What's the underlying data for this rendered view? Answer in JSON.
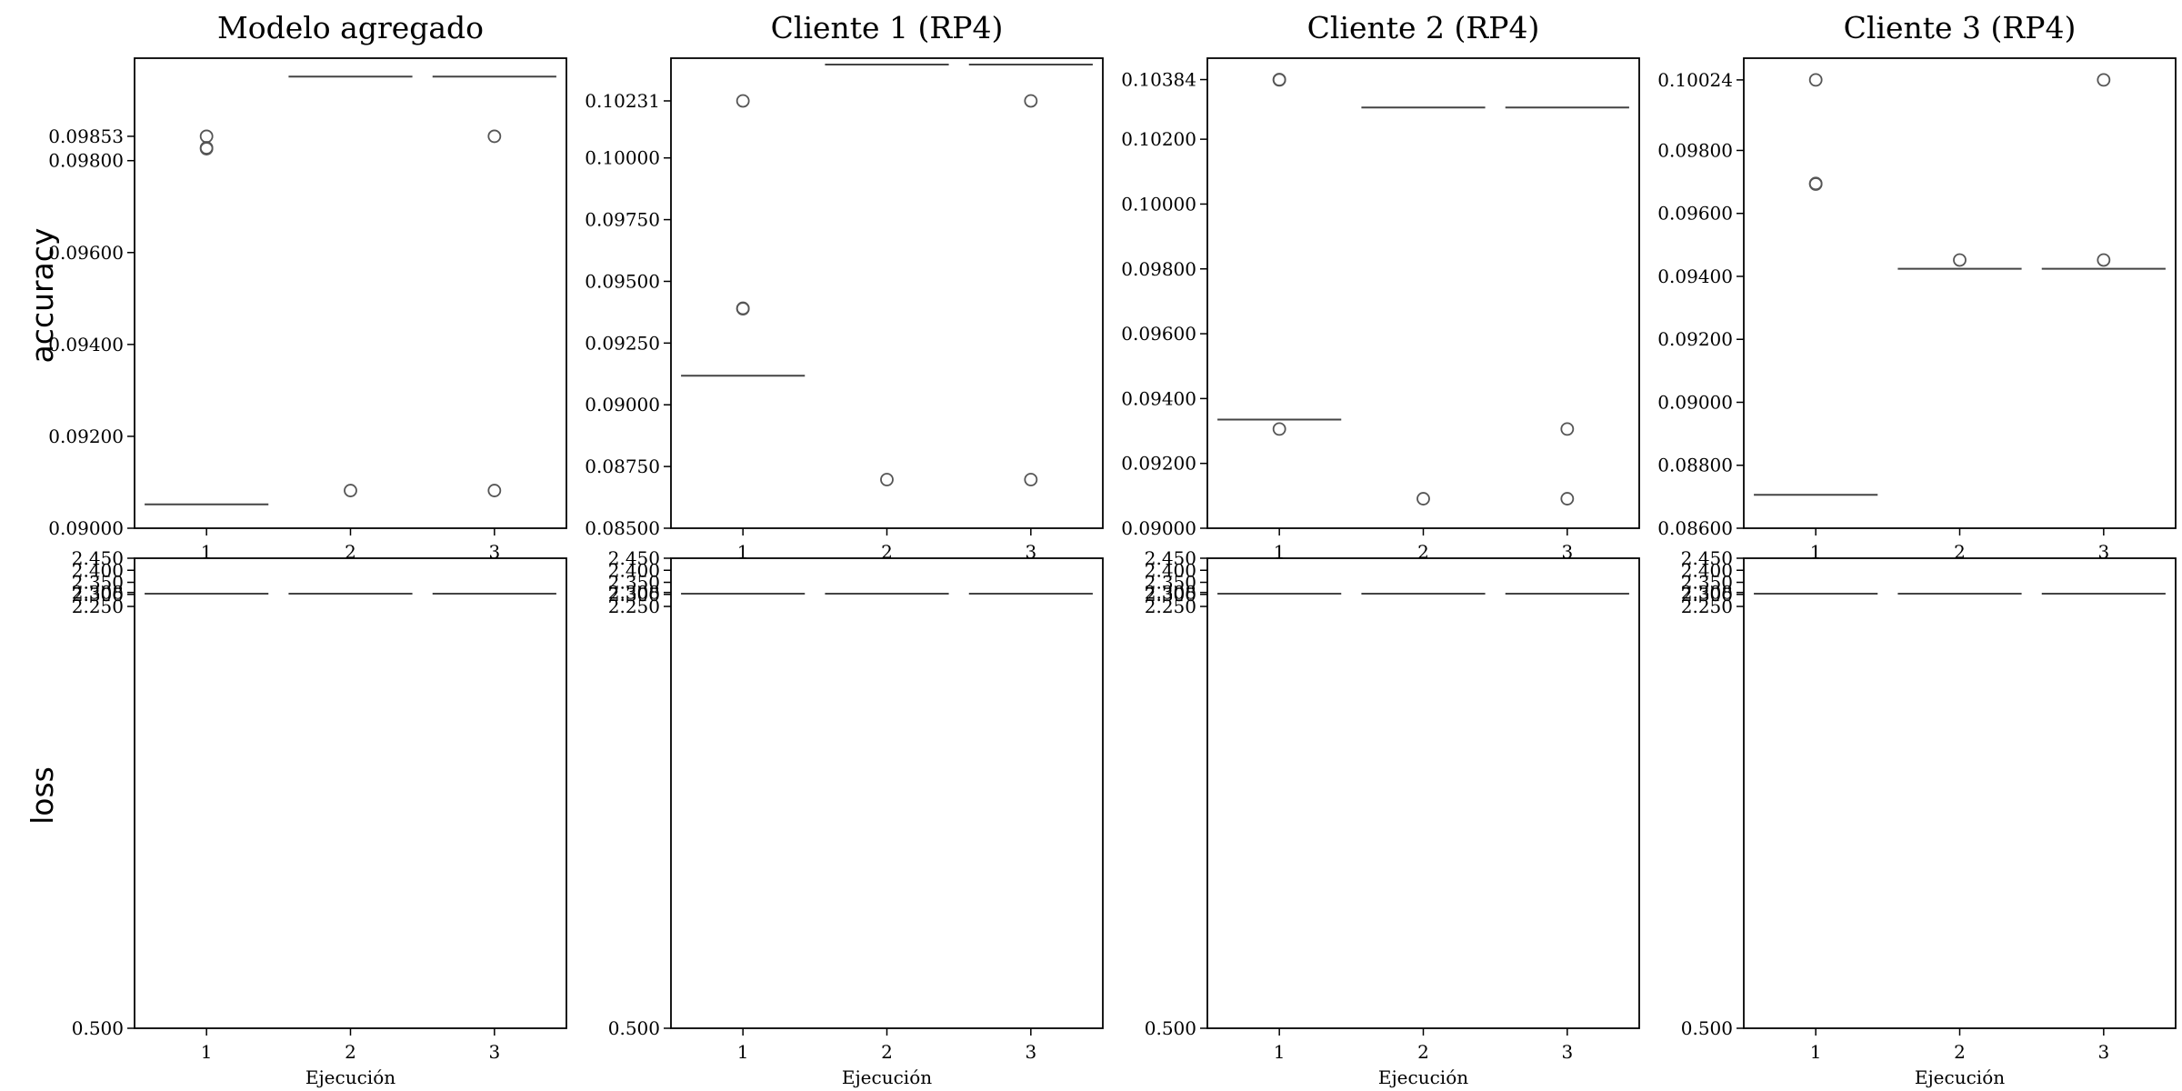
{
  "colors": {
    "axes": "#000000",
    "median": "#444444",
    "outlier": "#555555"
  },
  "row_labels": [
    "accuracy",
    "loss"
  ],
  "chart_data": [
    {
      "type": "box",
      "title": "Modelo agregado",
      "metric": "accuracy",
      "categories": [
        "1",
        "2",
        "3"
      ],
      "xlabel": "",
      "ylim": [
        0.09,
        0.10023
      ],
      "yticks": [
        "0.09000",
        "0.09200",
        "0.09400",
        "0.09600",
        "0.09800",
        "0.09853"
      ],
      "series": [
        {
          "category": "1",
          "median": 0.09052,
          "outliers": [
            0.09853,
            0.09828,
            0.09826
          ]
        },
        {
          "category": "2",
          "median": 0.09983,
          "outliers": [
            0.09082
          ]
        },
        {
          "category": "3",
          "median": 0.09983,
          "outliers": [
            0.09853,
            0.09082
          ]
        }
      ]
    },
    {
      "type": "box",
      "title": "Cliente 1 (RP4)",
      "metric": "accuracy",
      "categories": [
        "1",
        "2",
        "3"
      ],
      "xlabel": "",
      "ylim": [
        0.085,
        0.10404
      ],
      "yticks": [
        "0.08500",
        "0.08750",
        "0.09000",
        "0.09250",
        "0.09500",
        "0.09750",
        "0.10000",
        "0.10231"
      ],
      "series": [
        {
          "category": "1",
          "median": 0.09118,
          "outliers": [
            0.10231,
            0.09391,
            0.09389
          ]
        },
        {
          "category": "2",
          "median": 0.10378,
          "outliers": [
            0.08697
          ]
        },
        {
          "category": "3",
          "median": 0.10378,
          "outliers": [
            0.10231,
            0.08697
          ]
        }
      ]
    },
    {
      "type": "box",
      "title": "Cliente 2 (RP4)",
      "metric": "accuracy",
      "categories": [
        "1",
        "2",
        "3"
      ],
      "xlabel": "",
      "ylim": [
        0.09,
        0.1045
      ],
      "yticks": [
        "0.09000",
        "0.09200",
        "0.09400",
        "0.09600",
        "0.09800",
        "0.10000",
        "0.10200",
        "0.10384"
      ],
      "series": [
        {
          "category": "1",
          "median": 0.09335,
          "outliers": [
            0.10384,
            0.10383,
            0.09306
          ]
        },
        {
          "category": "2",
          "median": 0.10298,
          "outliers": [
            0.09091
          ]
        },
        {
          "category": "3",
          "median": 0.10298,
          "outliers": [
            0.09306,
            0.09091
          ]
        }
      ]
    },
    {
      "type": "box",
      "title": "Cliente 3 (RP4)",
      "metric": "accuracy",
      "categories": [
        "1",
        "2",
        "3"
      ],
      "xlabel": "",
      "ylim": [
        0.086,
        0.10093
      ],
      "yticks": [
        "0.08600",
        "0.08800",
        "0.09000",
        "0.09200",
        "0.09400",
        "0.09600",
        "0.09800",
        "0.10024"
      ],
      "series": [
        {
          "category": "1",
          "median": 0.08706,
          "outliers": [
            0.10024,
            0.09695,
            0.09693
          ]
        },
        {
          "category": "2",
          "median": 0.09424,
          "outliers": [
            0.09452
          ]
        },
        {
          "category": "3",
          "median": 0.09424,
          "outliers": [
            0.10024,
            0.09452
          ]
        }
      ]
    },
    {
      "type": "box",
      "title": "",
      "metric": "loss",
      "categories": [
        "1",
        "2",
        "3"
      ],
      "xlabel": "Ejecución",
      "ylim": [
        0.5,
        2.45
      ],
      "yticks": [
        "0.500",
        "2.250",
        "2.300",
        "2.308",
        "2.350",
        "2.400",
        "2.450"
      ],
      "series": [
        {
          "category": "1",
          "median": 2.303,
          "outliers": []
        },
        {
          "category": "2",
          "median": 2.303,
          "outliers": []
        },
        {
          "category": "3",
          "median": 2.303,
          "outliers": []
        }
      ]
    },
    {
      "type": "box",
      "title": "",
      "metric": "loss",
      "categories": [
        "1",
        "2",
        "3"
      ],
      "xlabel": "Ejecución",
      "ylim": [
        0.5,
        2.45
      ],
      "yticks": [
        "0.500",
        "2.250",
        "2.300",
        "2.308",
        "2.350",
        "2.400",
        "2.450"
      ],
      "series": [
        {
          "category": "1",
          "median": 2.303,
          "outliers": []
        },
        {
          "category": "2",
          "median": 2.303,
          "outliers": []
        },
        {
          "category": "3",
          "median": 2.303,
          "outliers": []
        }
      ]
    },
    {
      "type": "box",
      "title": "",
      "metric": "loss",
      "categories": [
        "1",
        "2",
        "3"
      ],
      "xlabel": "Ejecución",
      "ylim": [
        0.5,
        2.45
      ],
      "yticks": [
        "0.500",
        "2.250",
        "2.300",
        "2.308",
        "2.350",
        "2.400",
        "2.450"
      ],
      "series": [
        {
          "category": "1",
          "median": 2.303,
          "outliers": []
        },
        {
          "category": "2",
          "median": 2.303,
          "outliers": []
        },
        {
          "category": "3",
          "median": 2.303,
          "outliers": []
        }
      ]
    },
    {
      "type": "box",
      "title": "",
      "metric": "loss",
      "categories": [
        "1",
        "2",
        "3"
      ],
      "xlabel": "Ejecución",
      "ylim": [
        0.5,
        2.45
      ],
      "yticks": [
        "0.500",
        "2.250",
        "2.300",
        "2.308",
        "2.350",
        "2.400",
        "2.450"
      ],
      "series": [
        {
          "category": "1",
          "median": 2.303,
          "outliers": []
        },
        {
          "category": "2",
          "median": 2.303,
          "outliers": []
        },
        {
          "category": "3",
          "median": 2.303,
          "outliers": []
        }
      ]
    }
  ]
}
